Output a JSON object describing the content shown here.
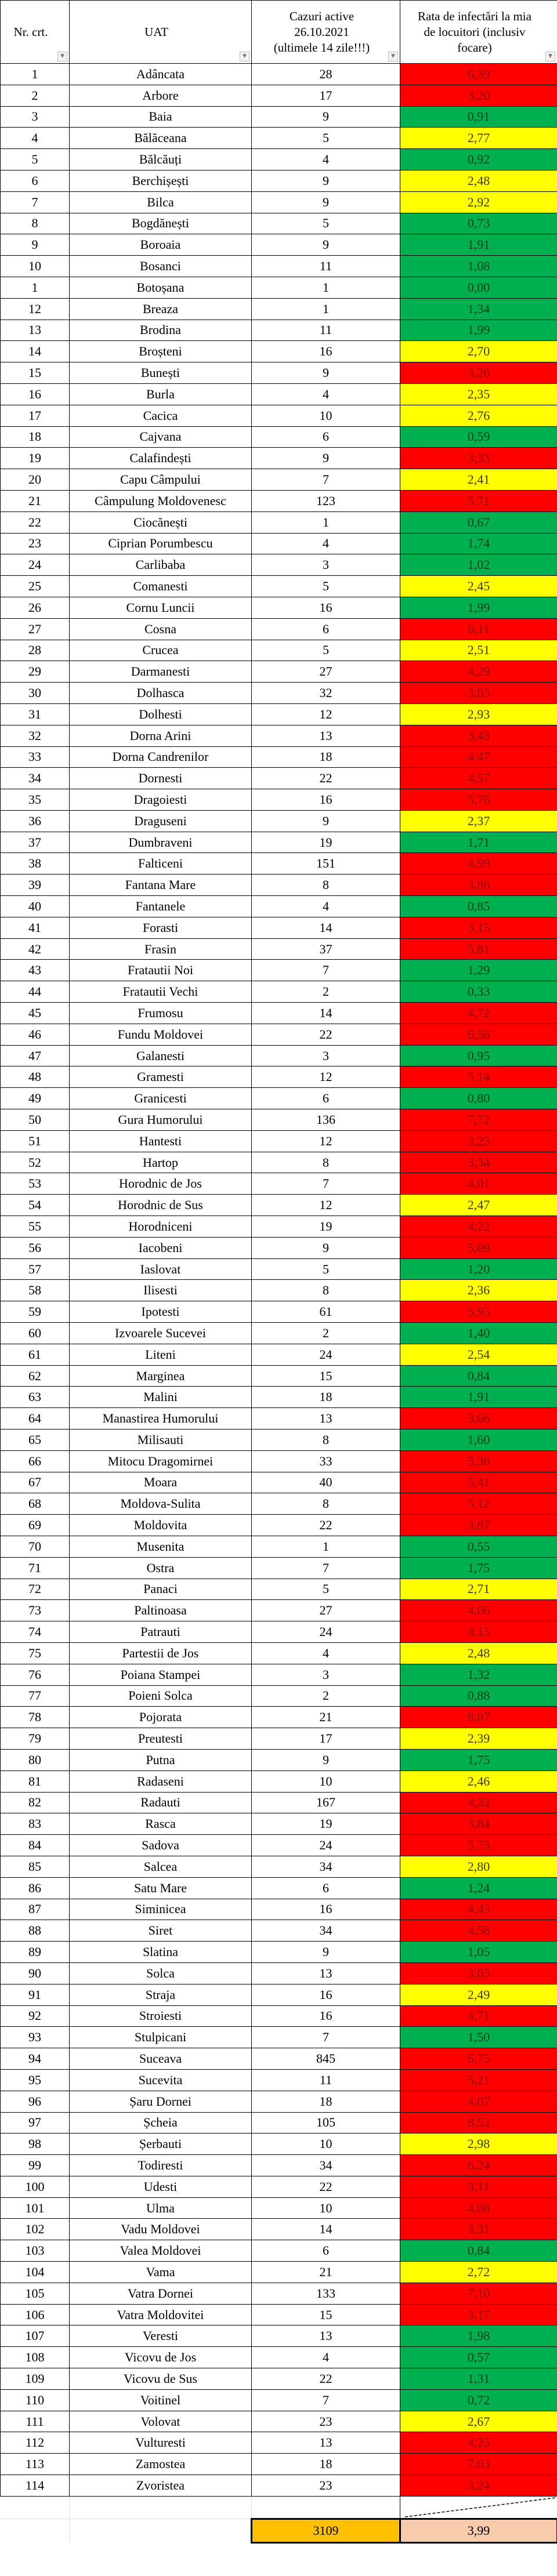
{
  "header": {
    "nr": "Nr. crt.",
    "uat": "UAT",
    "cases": [
      "Cazuri active",
      "26.10.2021",
      "(ultimele 14 zile!!!)"
    ],
    "rate": [
      "Rata de infectări la mia",
      "de locuitori (inclusiv",
      "focare)"
    ],
    "filter_icon": "dropdown-arrow-icon"
  },
  "colors": {
    "r": "#ff0000",
    "y": "#ffff00",
    "g": "#00b050",
    "total_cases": "#ffc000",
    "total_rate": "#f8cbad"
  },
  "rows": [
    [
      "1",
      "Adâncata",
      "28",
      "6,39",
      "r"
    ],
    [
      "2",
      "Arbore",
      "17",
      "3,20",
      "r"
    ],
    [
      "3",
      "Baia",
      "9",
      "0,91",
      "g"
    ],
    [
      "4",
      "Bălăceana",
      "5",
      "2,77",
      "y"
    ],
    [
      "5",
      "Bălcăuți",
      "4",
      "0,92",
      "g"
    ],
    [
      "6",
      "Berchișești",
      "9",
      "2,48",
      "y"
    ],
    [
      "7",
      "Bilca",
      "9",
      "2,92",
      "y"
    ],
    [
      "8",
      "Bogdănești",
      "5",
      "0,73",
      "g"
    ],
    [
      "9",
      "Boroaia",
      "9",
      "1,91",
      "g"
    ],
    [
      "10",
      "Bosanci",
      "11",
      "1,08",
      "g"
    ],
    [
      "1",
      "Botoșana",
      "1",
      "0,00",
      "g"
    ],
    [
      "12",
      "Breaza",
      "1",
      "1,34",
      "g"
    ],
    [
      "13",
      "Brodina",
      "11",
      "1,99",
      "g"
    ],
    [
      "14",
      "Broșteni",
      "16",
      "2,70",
      "y"
    ],
    [
      "15",
      "Bunești",
      "9",
      "3,26",
      "r"
    ],
    [
      "16",
      "Burla",
      "4",
      "2,35",
      "y"
    ],
    [
      "17",
      "Cacica",
      "10",
      "2,76",
      "y"
    ],
    [
      "18",
      "Cajvana",
      "6",
      "0,59",
      "g"
    ],
    [
      "19",
      "Calafindești",
      "9",
      "3,33",
      "r"
    ],
    [
      "20",
      "Capu Câmpului",
      "7",
      "2,41",
      "y"
    ],
    [
      "21",
      "Câmpulung Moldovenesc",
      "123",
      "5,71",
      "r"
    ],
    [
      "22",
      "Ciocănești",
      "1",
      "0,67",
      "g"
    ],
    [
      "23",
      "Ciprian Porumbescu",
      "4",
      "1,74",
      "g"
    ],
    [
      "24",
      "Carlibaba",
      "3",
      "1,02",
      "g"
    ],
    [
      "25",
      "Comanesti",
      "5",
      "2,45",
      "y"
    ],
    [
      "26",
      "Cornu Luncii",
      "16",
      "1,99",
      "g"
    ],
    [
      "27",
      "Cosna",
      "6",
      "6,11",
      "r"
    ],
    [
      "28",
      "Crucea",
      "5",
      "2,51",
      "y"
    ],
    [
      "29",
      "Darmanesti",
      "27",
      "4,29",
      "r"
    ],
    [
      "30",
      "Dolhasca",
      "32",
      "3,05",
      "r"
    ],
    [
      "31",
      "Dolhesti",
      "12",
      "2,93",
      "y"
    ],
    [
      "32",
      "Dorna Arini",
      "13",
      "3,43",
      "r"
    ],
    [
      "33",
      "Dorna Candrenilor",
      "18",
      "4,47",
      "r"
    ],
    [
      "34",
      "Dornesti",
      "22",
      "4,57",
      "r"
    ],
    [
      "35",
      "Dragoiesti",
      "16",
      "5,76",
      "r"
    ],
    [
      "36",
      "Draguseni",
      "9",
      "2,37",
      "y"
    ],
    [
      "37",
      "Dumbraveni",
      "19",
      "1,71",
      "g"
    ],
    [
      "38",
      "Falticeni",
      "151",
      "4,99",
      "r"
    ],
    [
      "39",
      "Fantana Mare",
      "8",
      "3,86",
      "r"
    ],
    [
      "40",
      "Fantanele",
      "4",
      "0,85",
      "g"
    ],
    [
      "41",
      "Forasti",
      "14",
      "3,15",
      "r"
    ],
    [
      "42",
      "Frasin",
      "37",
      "5,81",
      "r"
    ],
    [
      "43",
      "Fratautii Noi",
      "7",
      "1,29",
      "g"
    ],
    [
      "44",
      "Fratautii Vechi",
      "2",
      "0,33",
      "g"
    ],
    [
      "45",
      "Frumosu",
      "14",
      "4,72",
      "r"
    ],
    [
      "46",
      "Fundu Moldovei",
      "22",
      "6,56",
      "r"
    ],
    [
      "47",
      "Galanesti",
      "3",
      "0,95",
      "g"
    ],
    [
      "48",
      "Gramesti",
      "12",
      "5,14",
      "r"
    ],
    [
      "49",
      "Granicesti",
      "6",
      "0,80",
      "g"
    ],
    [
      "50",
      "Gura Humorului",
      "136",
      "7,72",
      "r"
    ],
    [
      "51",
      "Hantesti",
      "12",
      "3,23",
      "r"
    ],
    [
      "52",
      "Hartop",
      "8",
      "3,34",
      "r"
    ],
    [
      "53",
      "Horodnic de Jos",
      "7",
      "4,01",
      "r"
    ],
    [
      "54",
      "Horodnic de Sus",
      "12",
      "2,47",
      "y"
    ],
    [
      "55",
      "Horodniceni",
      "19",
      "4,22",
      "r"
    ],
    [
      "56",
      "Iacobeni",
      "9",
      "5,09",
      "r"
    ],
    [
      "57",
      "Iaslovat",
      "5",
      "1,20",
      "g"
    ],
    [
      "58",
      "Ilisesti",
      "8",
      "2,36",
      "y"
    ],
    [
      "59",
      "Ipotesti",
      "61",
      "5,95",
      "r"
    ],
    [
      "60",
      "Izvoarele Sucevei",
      "2",
      "1,40",
      "g"
    ],
    [
      "61",
      "Liteni",
      "24",
      "2,54",
      "y"
    ],
    [
      "62",
      "Marginea",
      "15",
      "0,84",
      "g"
    ],
    [
      "63",
      "Malini",
      "18",
      "1,91",
      "g"
    ],
    [
      "64",
      "Manastirea Humorului",
      "13",
      "3,66",
      "r"
    ],
    [
      "65",
      "Milisauti",
      "8",
      "1,60",
      "g"
    ],
    [
      "66",
      "Mitocu Dragomirnei",
      "33",
      "5,36",
      "r"
    ],
    [
      "67",
      "Moara",
      "40",
      "5,41",
      "r"
    ],
    [
      "68",
      "Moldova-Sulita",
      "8",
      "5,12",
      "r"
    ],
    [
      "69",
      "Moldovita",
      "22",
      "3,87",
      "r"
    ],
    [
      "70",
      "Musenita",
      "1",
      "0,55",
      "g"
    ],
    [
      "71",
      "Ostra",
      "7",
      "1,75",
      "g"
    ],
    [
      "72",
      "Panaci",
      "5",
      "2,71",
      "y"
    ],
    [
      "73",
      "Paltinoasa",
      "27",
      "4,06",
      "r"
    ],
    [
      "74",
      "Patrauti",
      "24",
      "4,15",
      "r"
    ],
    [
      "75",
      "Partestii de Jos",
      "4",
      "2,48",
      "y"
    ],
    [
      "76",
      "Poiana Stampei",
      "3",
      "1,32",
      "g"
    ],
    [
      "77",
      "Poieni Solca",
      "2",
      "0,88",
      "g"
    ],
    [
      "78",
      "Pojorata",
      "21",
      "8,07",
      "r"
    ],
    [
      "79",
      "Preutesti",
      "17",
      "2,39",
      "y"
    ],
    [
      "80",
      "Putna",
      "9",
      "1,75",
      "g"
    ],
    [
      "81",
      "Radaseni",
      "10",
      "2,46",
      "y"
    ],
    [
      "82",
      "Radauti",
      "167",
      "4,32",
      "r"
    ],
    [
      "83",
      "Rasca",
      "19",
      "3,84",
      "r"
    ],
    [
      "84",
      "Sadova",
      "24",
      "5,73",
      "r"
    ],
    [
      "85",
      "Salcea",
      "34",
      "2,80",
      "y"
    ],
    [
      "86",
      "Satu Mare",
      "6",
      "1,24",
      "g"
    ],
    [
      "87",
      "Siminicea",
      "16",
      "4,45",
      "r"
    ],
    [
      "88",
      "Siret",
      "34",
      "4,58",
      "r"
    ],
    [
      "89",
      "Slatina",
      "9",
      "1,05",
      "g"
    ],
    [
      "90",
      "Solca",
      "13",
      "3,05",
      "r"
    ],
    [
      "91",
      "Straja",
      "16",
      "2,49",
      "y"
    ],
    [
      "92",
      "Stroiesti",
      "16",
      "4,71",
      "r"
    ],
    [
      "93",
      "Stulpicani",
      "7",
      "1,50",
      "g"
    ],
    [
      "94",
      "Suceava",
      "845",
      "6,75",
      "r"
    ],
    [
      "95",
      "Sucevita",
      "11",
      "5,21",
      "r"
    ],
    [
      "96",
      "Șaru Dornei",
      "18",
      "4,07",
      "r"
    ],
    [
      "97",
      "Șcheia",
      "105",
      "8,52",
      "r"
    ],
    [
      "98",
      "Șerbauti",
      "10",
      "2,98",
      "y"
    ],
    [
      "99",
      "Todiresti",
      "34",
      "6,24",
      "r"
    ],
    [
      "100",
      "Udesti",
      "22",
      "3,11",
      "r"
    ],
    [
      "101",
      "Ulma",
      "10",
      "4,08",
      "r"
    ],
    [
      "102",
      "Vadu Moldovei",
      "14",
      "3,31",
      "r"
    ],
    [
      "103",
      "Valea Moldovei",
      "6",
      "0,84",
      "g"
    ],
    [
      "104",
      "Vama",
      "21",
      "2,72",
      "y"
    ],
    [
      "105",
      "Vatra Dornei",
      "133",
      "7,10",
      "r"
    ],
    [
      "106",
      "Vatra Moldovitei",
      "15",
      "3,17",
      "r"
    ],
    [
      "107",
      "Veresti",
      "13",
      "1,98",
      "g"
    ],
    [
      "108",
      "Vicovu de Jos",
      "4",
      "0,57",
      "g"
    ],
    [
      "109",
      "Vicovu de Sus",
      "22",
      "1,31",
      "g"
    ],
    [
      "110",
      "Voitinel",
      "7",
      "0,72",
      "g"
    ],
    [
      "111",
      "Volovat",
      "23",
      "2,67",
      "y"
    ],
    [
      "112",
      "Vulturesti",
      "13",
      "4,25",
      "r"
    ],
    [
      "113",
      "Zamostea",
      "18",
      "7,03",
      "r"
    ],
    [
      "114",
      "Zvoristea",
      "23",
      "3,24",
      "r"
    ]
  ],
  "total": {
    "cases": "3109",
    "rate": "3,99"
  }
}
